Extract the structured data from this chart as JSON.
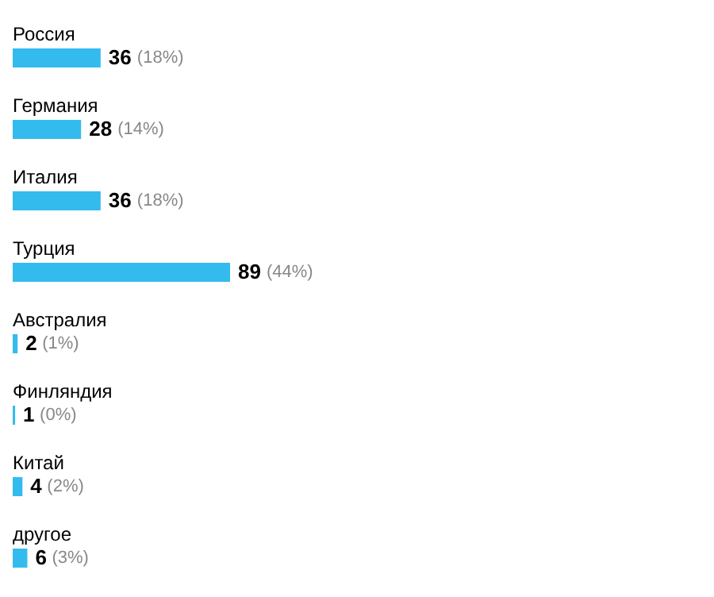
{
  "chart_data": {
    "type": "bar",
    "orientation": "horizontal",
    "categories": [
      "Россия",
      "Германия",
      "Италия",
      "Турция",
      "Австралия",
      "Финляндия",
      "Китай",
      "другое"
    ],
    "values": [
      36,
      28,
      36,
      89,
      2,
      1,
      4,
      6
    ],
    "color": "#33bbee",
    "data_labels": true,
    "annotations": [
      {
        "text": "(18%)",
        "x": 36,
        "y": "Россия"
      },
      {
        "text": "(14%)",
        "x": 28,
        "y": "Германия"
      },
      {
        "text": "(18%)",
        "x": 36,
        "y": "Италия"
      },
      {
        "text": "(44%)",
        "x": 89,
        "y": "Турция"
      },
      {
        "text": "(1%)",
        "x": 2,
        "y": "Австралия"
      },
      {
        "text": "(0%)",
        "x": 1,
        "y": "Финляндия"
      },
      {
        "text": "(2%)",
        "x": 4,
        "y": "Китай"
      },
      {
        "text": "(3%)",
        "x": 6,
        "y": "другое"
      }
    ]
  }
}
